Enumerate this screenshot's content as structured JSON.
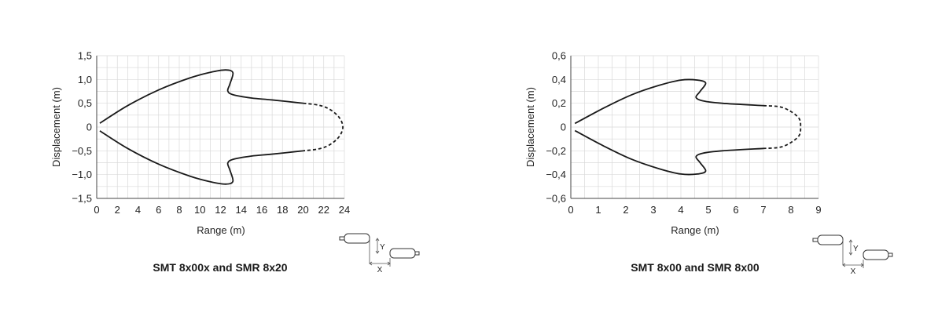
{
  "charts": [
    {
      "caption": "SMT 8x00x and SMR 8x20",
      "chart_data": {
        "type": "line",
        "title": "",
        "xlabel": "Range (m)",
        "ylabel": "Displacement (m)",
        "xlim": [
          0,
          24
        ],
        "ylim": [
          -1.5,
          1.5
        ],
        "xticks": [
          "0",
          "2",
          "4",
          "6",
          "8",
          "10",
          "12",
          "14",
          "16",
          "18",
          "20",
          "22",
          "24"
        ],
        "yticks": [
          "1,5",
          "1,0",
          "0,5",
          "0",
          "−0,5",
          "−1,0",
          "−1,5"
        ],
        "grid": true,
        "series": [
          {
            "style": "solid",
            "points": [
              [
                0.3,
                0.08
              ],
              [
                3,
                0.45
              ],
              [
                6,
                0.78
              ],
              [
                9,
                1.03
              ],
              [
                11,
                1.15
              ],
              [
                12.5,
                1.2
              ],
              [
                13.2,
                1.14
              ],
              [
                12.9,
                0.9
              ],
              [
                12.7,
                0.76
              ],
              [
                13.2,
                0.68
              ],
              [
                15,
                0.61
              ],
              [
                17,
                0.57
              ],
              [
                20,
                0.5
              ]
            ]
          },
          {
            "style": "dashed",
            "points": [
              [
                20,
                0.5
              ],
              [
                21.5,
                0.46
              ],
              [
                22.6,
                0.37
              ],
              [
                23.5,
                0.2
              ],
              [
                23.85,
                0
              ],
              [
                23.5,
                -0.2
              ],
              [
                22.6,
                -0.37
              ],
              [
                21.5,
                -0.46
              ],
              [
                20,
                -0.5
              ]
            ]
          },
          {
            "style": "solid",
            "points": [
              [
                20,
                -0.5
              ],
              [
                17,
                -0.57
              ],
              [
                15,
                -0.61
              ],
              [
                13.2,
                -0.68
              ],
              [
                12.7,
                -0.76
              ],
              [
                12.9,
                -0.9
              ],
              [
                13.2,
                -1.14
              ],
              [
                12.5,
                -1.2
              ],
              [
                11,
                -1.15
              ],
              [
                9,
                -1.03
              ],
              [
                6,
                -0.78
              ],
              [
                3,
                -0.45
              ],
              [
                0.3,
                -0.08
              ]
            ]
          }
        ]
      },
      "sensor_diagram": {
        "y_label": "Y",
        "x_label": "X"
      }
    },
    {
      "caption": "SMT 8x00 and SMR 8x00",
      "chart_data": {
        "type": "line",
        "title": "",
        "xlabel": "Range (m)",
        "ylabel": "Displacement (m)",
        "xlim": [
          0,
          9
        ],
        "ylim": [
          -0.6,
          0.6
        ],
        "xticks": [
          "0",
          "1",
          "2",
          "3",
          "4",
          "5",
          "6",
          "7",
          "8",
          "9"
        ],
        "yticks": [
          "0,6",
          "0,4",
          "0,2",
          "0",
          "−0,2",
          "−0,4",
          "−0,6"
        ],
        "grid": true,
        "series": [
          {
            "style": "solid",
            "points": [
              [
                0.15,
                0.03
              ],
              [
                1.2,
                0.16
              ],
              [
                2.2,
                0.27
              ],
              [
                3.2,
                0.35
              ],
              [
                4,
                0.395
              ],
              [
                4.6,
                0.395
              ],
              [
                4.9,
                0.37
              ],
              [
                4.7,
                0.3
              ],
              [
                4.55,
                0.25
              ],
              [
                4.8,
                0.22
              ],
              [
                5.5,
                0.2
              ],
              [
                7,
                0.18
              ]
            ]
          },
          {
            "style": "dashed",
            "points": [
              [
                7,
                0.18
              ],
              [
                7.6,
                0.17
              ],
              [
                8,
                0.13
              ],
              [
                8.3,
                0.07
              ],
              [
                8.35,
                0
              ],
              [
                8.3,
                -0.07
              ],
              [
                8,
                -0.13
              ],
              [
                7.6,
                -0.17
              ],
              [
                7,
                -0.18
              ]
            ]
          },
          {
            "style": "solid",
            "points": [
              [
                7,
                -0.18
              ],
              [
                5.5,
                -0.2
              ],
              [
                4.8,
                -0.22
              ],
              [
                4.55,
                -0.25
              ],
              [
                4.7,
                -0.3
              ],
              [
                4.9,
                -0.37
              ],
              [
                4.6,
                -0.395
              ],
              [
                4,
                -0.395
              ],
              [
                3.2,
                -0.35
              ],
              [
                2.2,
                -0.27
              ],
              [
                1.2,
                -0.16
              ],
              [
                0.15,
                -0.03
              ]
            ]
          }
        ]
      },
      "sensor_diagram": {
        "y_label": "Y",
        "x_label": "X"
      }
    }
  ]
}
